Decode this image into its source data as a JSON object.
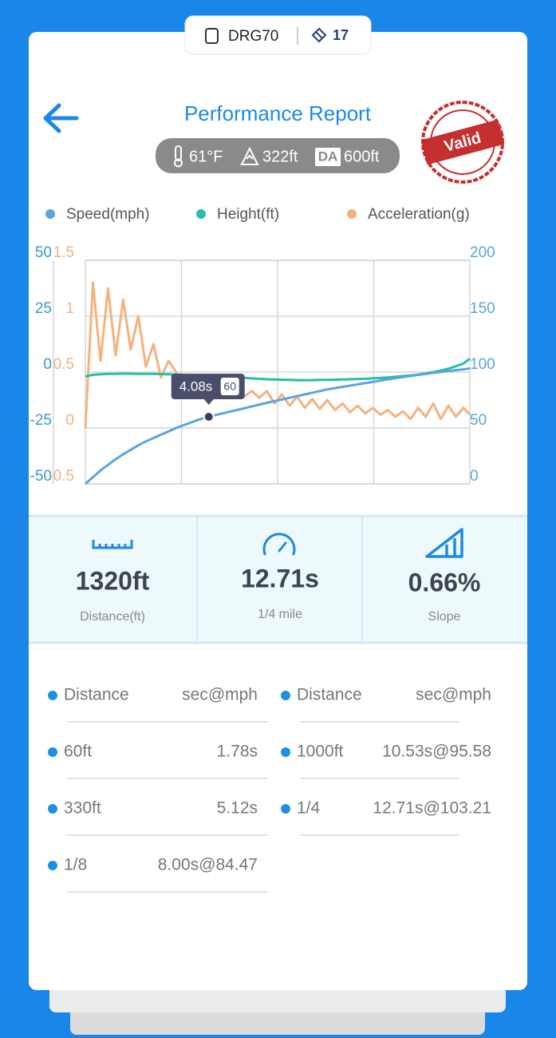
{
  "header": {
    "device": "DRG70",
    "badge": "17",
    "title": "Performance Report",
    "stamp": "Valid",
    "conditions": {
      "temperature": "61°F",
      "altitude": "322ft",
      "da_label": "DA",
      "da": "600ft"
    }
  },
  "chart_data": {
    "type": "line",
    "x": [
      0,
      0.25,
      0.5,
      0.75,
      1,
      1.25,
      1.5,
      1.75,
      2,
      2.25,
      2.5,
      2.75,
      3,
      3.25,
      3.5,
      3.75,
      4,
      4.25,
      4.5,
      4.75,
      5,
      5.25,
      5.5,
      5.75,
      6,
      6.25,
      6.5,
      6.75,
      7,
      7.25,
      7.5,
      7.75,
      8,
      8.25,
      8.5,
      8.75,
      9,
      9.25,
      9.5,
      9.75,
      10,
      10.25,
      10.5,
      10.75,
      11,
      11.25,
      11.5,
      11.75,
      12,
      12.25,
      12.5,
      12.71
    ],
    "xlim": [
      0,
      12.71
    ],
    "series": [
      {
        "name": "Speed(mph)",
        "color": "#5aa5e0",
        "axis": "y2",
        "values": [
          0,
          6,
          12,
          17,
          22,
          26.5,
          30.5,
          34.5,
          38,
          41,
          44,
          47,
          50,
          52.5,
          55,
          57.5,
          59.5,
          61.2,
          62.8,
          64.4,
          66,
          67.6,
          69.3,
          70.9,
          72.5,
          74,
          75.5,
          77,
          78.5,
          80,
          81.5,
          83,
          84.5,
          85.6,
          86.8,
          87.9,
          89,
          90.1,
          91.2,
          92.4,
          93.5,
          94.5,
          95.5,
          96.5,
          97.5,
          98.4,
          99.3,
          100.1,
          101,
          101.7,
          102.5,
          103.2
        ]
      },
      {
        "name": "Height(ft)",
        "color": "#2bbcaa",
        "axis": "y",
        "values": [
          -2,
          -1.2,
          -1,
          -0.8,
          -0.8,
          -0.7,
          -0.7,
          -0.8,
          -0.8,
          -0.8,
          -0.9,
          -1,
          -1.1,
          -1.2,
          -1.3,
          -1.5,
          -1.6,
          -1.8,
          -2,
          -2.2,
          -2.4,
          -2.6,
          -2.8,
          -3,
          -3.2,
          -3.3,
          -3.4,
          -3.5,
          -3.6,
          -3.6,
          -3.6,
          -3.5,
          -3.5,
          -3.4,
          -3.3,
          -3.2,
          -3.1,
          -3,
          -2.8,
          -2.6,
          -2.4,
          -2.1,
          -1.8,
          -1.5,
          -1.1,
          -0.6,
          0,
          0.7,
          1.5,
          2.6,
          3.8,
          6
        ]
      },
      {
        "name": "Acceleration(g)",
        "color": "#f4b27f",
        "axis": "y3",
        "values": [
          0,
          1.3,
          0.6,
          1.25,
          0.65,
          1.15,
          0.7,
          1,
          0.55,
          0.75,
          0.45,
          0.6,
          0.5,
          0.35,
          0.45,
          0.3,
          0.4,
          0.3,
          0.38,
          0.28,
          0.35,
          0.28,
          0.33,
          0.27,
          0.33,
          0.22,
          0.3,
          0.2,
          0.28,
          0.18,
          0.26,
          0.17,
          0.25,
          0.16,
          0.22,
          0.14,
          0.2,
          0.13,
          0.18,
          0.12,
          0.16,
          0.1,
          0.15,
          0.08,
          0.18,
          0.1,
          0.22,
          0.08,
          0.2,
          0.1,
          0.18,
          0.12
        ]
      }
    ],
    "ylim": [
      -50,
      50
    ],
    "yticks": [
      -50,
      -25,
      0,
      25,
      50
    ],
    "y3lim": [
      -0.5,
      1.5
    ],
    "y3ticks": [
      -0.5,
      0,
      0.5,
      1,
      1.5
    ],
    "y2lim": [
      0,
      200
    ],
    "y2ticks": [
      0,
      50,
      100,
      150,
      200
    ],
    "grid": true,
    "tooltip": {
      "x": {
        "value": 4.08,
        "label": "4.08s"
      },
      "value": 60
    }
  },
  "stats": [
    {
      "value": "1320ft",
      "label": "Distance(ft)"
    },
    {
      "value": "12.71s",
      "label": "1/4 mile"
    },
    {
      "value": "0.66%",
      "label": "Slope"
    }
  ],
  "table": {
    "left": {
      "header": [
        "Distance",
        "sec@mph"
      ],
      "rows": [
        [
          "60ft",
          "1.78s"
        ],
        [
          "330ft",
          "5.12s"
        ],
        [
          "1/8",
          "8.00s@84.47"
        ]
      ]
    },
    "right": {
      "header": [
        "Distance",
        "sec@mph"
      ],
      "rows": [
        [
          "1000ft",
          "10.53s@95.58"
        ],
        [
          "1/4",
          "12.71s@103.21"
        ]
      ]
    }
  }
}
